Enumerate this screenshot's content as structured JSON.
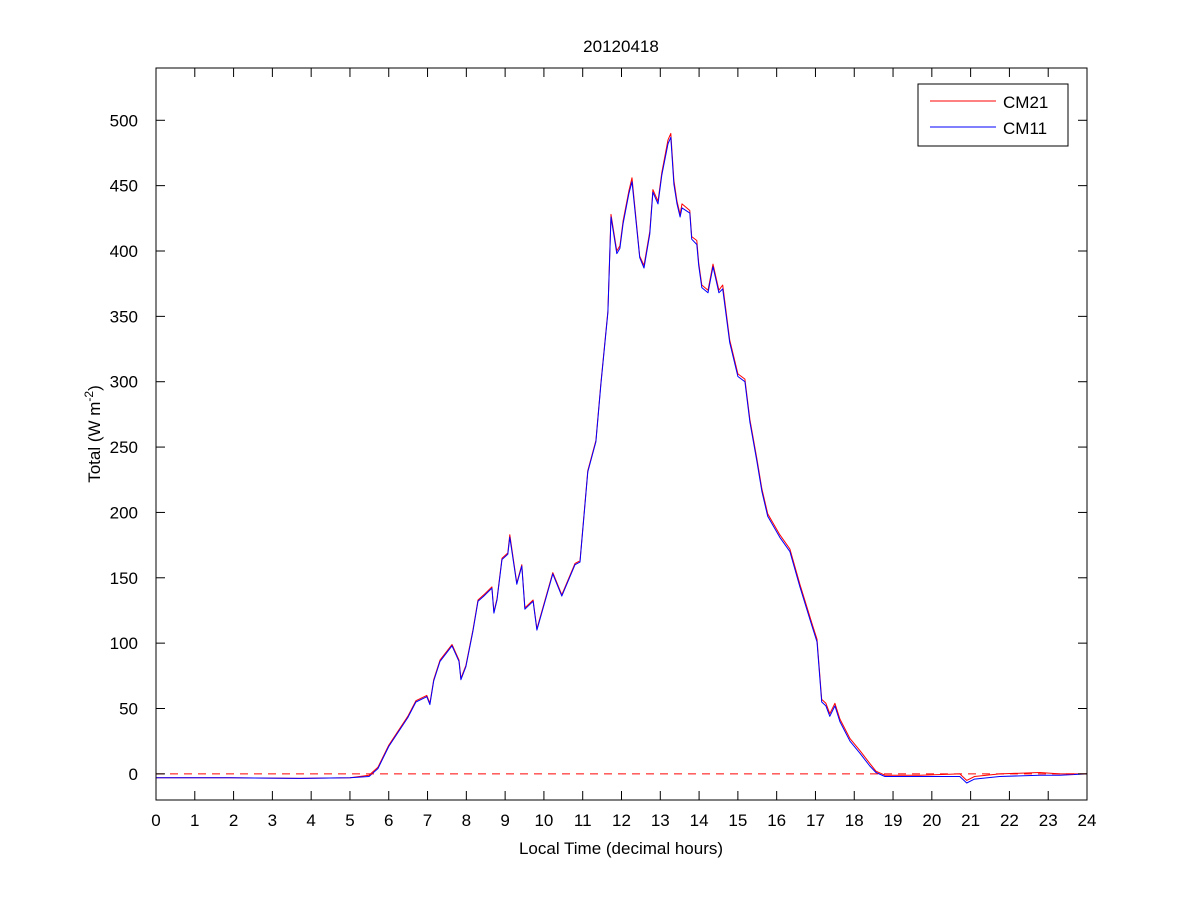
{
  "chart_data": {
    "type": "line",
    "title": "20120418",
    "xlabel": "Local Time (decimal hours)",
    "ylabel": "Total (W m",
    "ylabel_sup": "-2",
    "ylabel_end": ")",
    "xlim": [
      0,
      24
    ],
    "ylim": [
      -20,
      540
    ],
    "xticks": [
      0,
      1,
      2,
      3,
      4,
      5,
      6,
      7,
      8,
      9,
      10,
      11,
      12,
      13,
      14,
      15,
      16,
      17,
      18,
      19,
      20,
      21,
      22,
      23,
      24
    ],
    "yticks": [
      0,
      50,
      100,
      150,
      200,
      250,
      300,
      350,
      400,
      450,
      500
    ],
    "grid": false,
    "legend_position": "top-right",
    "reference_line": {
      "y": 0,
      "style": "dashed",
      "color": "#ff0000"
    },
    "x": [
      0,
      1.9,
      3.71,
      5.0,
      5.49,
      5.72,
      6.0,
      6.49,
      6.7,
      6.98,
      7.06,
      7.16,
      7.32,
      7.63,
      7.81,
      7.86,
      7.99,
      8.17,
      8.3,
      8.45,
      8.66,
      8.71,
      8.79,
      8.92,
      9.07,
      9.12,
      9.3,
      9.43,
      9.51,
      9.72,
      9.82,
      10.23,
      10.46,
      10.8,
      10.93,
      11.13,
      11.34,
      11.47,
      11.65,
      11.73,
      11.88,
      11.96,
      12.04,
      12.19,
      12.27,
      12.47,
      12.58,
      12.73,
      12.81,
      12.94,
      13.04,
      13.2,
      13.27,
      13.35,
      13.43,
      13.51,
      13.56,
      13.76,
      13.81,
      13.94,
      13.99,
      14.07,
      14.23,
      14.36,
      14.51,
      14.61,
      14.79,
      15.0,
      15.18,
      15.31,
      15.49,
      15.62,
      15.77,
      16.08,
      16.34,
      16.6,
      16.91,
      17.04,
      17.16,
      17.27,
      17.37,
      17.5,
      17.63,
      17.89,
      18.14,
      18.4,
      18.56,
      18.79,
      19.7,
      20.72,
      20.9,
      21.1,
      21.75,
      22.78,
      23.3,
      24
    ],
    "series": [
      {
        "name": "CM21",
        "color": "#ff0000",
        "values": [
          -3,
          -3,
          -3.5,
          -3,
          -1,
          5,
          22,
          44,
          56,
          60,
          54,
          72,
          87,
          99,
          87,
          73,
          83,
          110,
          133,
          137,
          143,
          124,
          134,
          165,
          169,
          183,
          146,
          160,
          127,
          133,
          111,
          154,
          137,
          161,
          163,
          232,
          255,
          299,
          354,
          428,
          400,
          404,
          423,
          446,
          456,
          396,
          389,
          415,
          447,
          438,
          460,
          485,
          490,
          454,
          438,
          428,
          436,
          431,
          411,
          408,
          391,
          374,
          370,
          390,
          370,
          374,
          332,
          306,
          302,
          271,
          241,
          218,
          199,
          183,
          172,
          145,
          115,
          103,
          57,
          54,
          46,
          54,
          42,
          27,
          18,
          8,
          2,
          -1,
          -1,
          0,
          -5,
          -2,
          0,
          1,
          0,
          0
        ]
      },
      {
        "name": "CM11",
        "color": "#0000ff",
        "values": [
          -3,
          -3,
          -3.5,
          -3,
          -2,
          4,
          21,
          43,
          55,
          59,
          53,
          71,
          86,
          98,
          86,
          72,
          82,
          109,
          132,
          136,
          142,
          123,
          133,
          164,
          168,
          181,
          145,
          159,
          126,
          132,
          110,
          153,
          136,
          160,
          162,
          231,
          254,
          298,
          353,
          426,
          398,
          402,
          421,
          444,
          453,
          395,
          387,
          413,
          445,
          436,
          458,
          482,
          487,
          451,
          436,
          426,
          433,
          429,
          409,
          405,
          389,
          372,
          368,
          388,
          368,
          371,
          330,
          304,
          300,
          269,
          239,
          216,
          197,
          181,
          170,
          143,
          113,
          101,
          55,
          52,
          44,
          52,
          40,
          25,
          16,
          6,
          1,
          -2,
          -2,
          -2,
          -7,
          -4,
          -2,
          -1,
          -1,
          0
        ]
      }
    ]
  }
}
